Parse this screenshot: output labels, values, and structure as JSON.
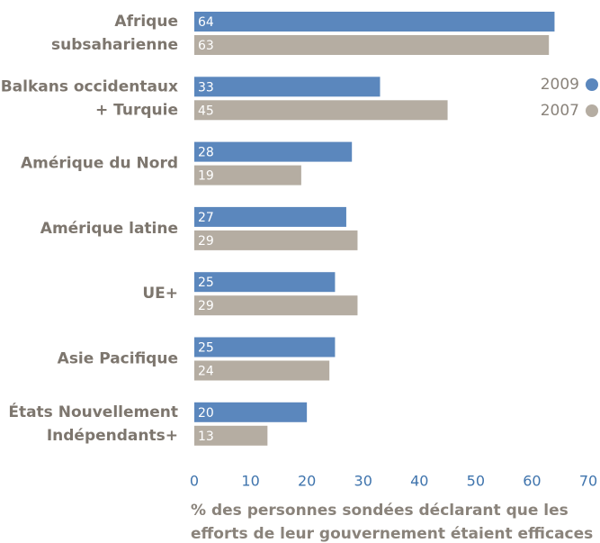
{
  "chart_data": {
    "type": "bar",
    "orientation": "horizontal",
    "categories": [
      [
        "Afrique",
        "subsaharienne"
      ],
      [
        "Balkans occidentaux",
        "+ Turquie"
      ],
      [
        "Amérique du Nord"
      ],
      [
        "Amérique latine"
      ],
      [
        "UE+"
      ],
      [
        "Asie Pacifique"
      ],
      [
        "États Nouvellement",
        "Indépendants+"
      ]
    ],
    "series": [
      {
        "name": "2009",
        "color": "#5b87bd",
        "values": [
          64,
          33,
          28,
          27,
          25,
          25,
          20
        ]
      },
      {
        "name": "2007",
        "color": "#b5ada2",
        "values": [
          63,
          45,
          19,
          29,
          29,
          24,
          13
        ]
      }
    ],
    "xlim": [
      0,
      70
    ],
    "xticks": [
      0,
      10,
      20,
      30,
      40,
      50,
      60,
      70
    ],
    "xlabel": [
      "% des personnes sondées déclarant que les",
      "efforts de leur gouvernement étaient efficaces"
    ],
    "legend": "upper right"
  }
}
